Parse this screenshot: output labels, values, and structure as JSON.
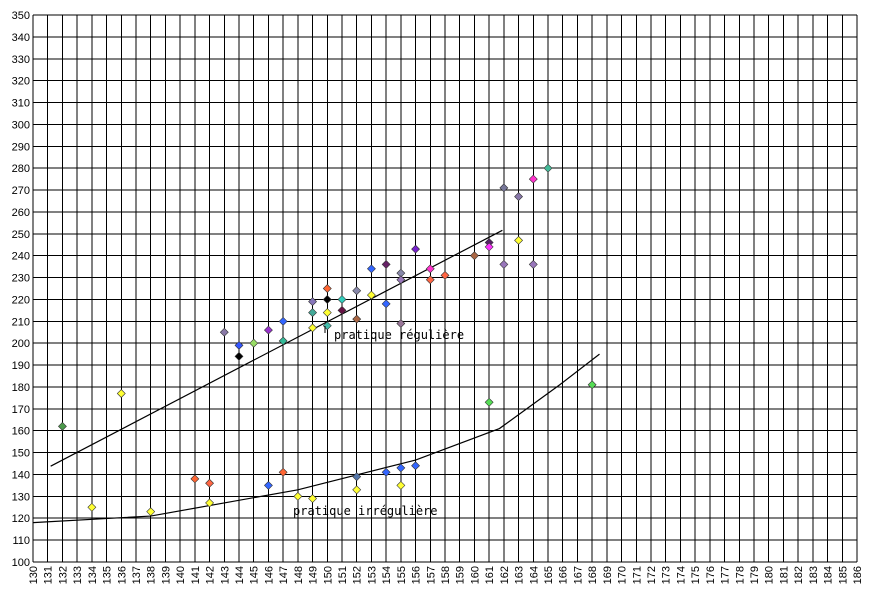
{
  "chart_data": {
    "type": "scatter",
    "xlim": [
      130,
      186
    ],
    "xticks": [
      130,
      131,
      132,
      133,
      134,
      135,
      136,
      137,
      138,
      139,
      140,
      141,
      142,
      143,
      144,
      145,
      146,
      147,
      148,
      149,
      150,
      151,
      152,
      153,
      154,
      155,
      156,
      157,
      158,
      159,
      160,
      161,
      162,
      163,
      164,
      165,
      166,
      167,
      168,
      169,
      170,
      171,
      172,
      173,
      174,
      175,
      176,
      177,
      178,
      179,
      180,
      181,
      182,
      183,
      184,
      185,
      186
    ],
    "ylim": [
      100,
      350
    ],
    "yticks": [
      100,
      110,
      120,
      130,
      140,
      150,
      160,
      170,
      180,
      190,
      200,
      210,
      220,
      230,
      240,
      250,
      260,
      270,
      280,
      290,
      300,
      310,
      320,
      330,
      340,
      350
    ],
    "grid": true,
    "series": [
      {
        "x": [
          132,
          134,
          136,
          138,
          141,
          142,
          142,
          143,
          144,
          144,
          145,
          146,
          146,
          147,
          147,
          147,
          148,
          149,
          149,
          149,
          149,
          150,
          150,
          150,
          150,
          151,
          151,
          152,
          152,
          152,
          152,
          153,
          153,
          154,
          154,
          154,
          155,
          155,
          155,
          155,
          155,
          156,
          156,
          157,
          157,
          158,
          160,
          161,
          161,
          161,
          162,
          162,
          163,
          163,
          164,
          164,
          165,
          168
        ],
        "values": [
          162,
          125,
          177,
          123,
          138,
          136,
          127,
          205,
          199,
          194,
          200,
          206,
          135,
          210,
          201,
          141,
          130,
          219,
          214,
          207,
          129,
          225,
          220,
          214,
          208,
          220,
          215,
          224,
          211,
          139,
          133,
          234,
          222,
          236,
          218,
          141,
          232,
          229,
          209,
          143,
          135,
          243,
          144,
          234,
          229,
          231,
          240,
          246,
          244,
          173,
          271,
          236,
          267,
          247,
          275,
          236,
          280,
          181
        ],
        "colors": [
          "#4c9a4c",
          "#ffff33",
          "#ffff33",
          "#ffff33",
          "#ff6633",
          "#ff6644",
          "#ffff33",
          "#8a7aa8",
          "#3355ff",
          "#000000",
          "#99dd66",
          "#9933cc",
          "#3366ff",
          "#3366ff",
          "#33bb99",
          "#ff6633",
          "#ffff33",
          "#8877bb",
          "#44aa99",
          "#ffff33",
          "#ffff33",
          "#ff6633",
          "#000000",
          "#ffff33",
          "#44bbaa",
          "#33ccbb",
          "#661144",
          "#8888aa",
          "#aa6644",
          "#5577aa",
          "#ffff33",
          "#3366ff",
          "#ffff33",
          "#662266",
          "#3366ff",
          "#3366ff",
          "#8888aa",
          "#9977bb",
          "#997799",
          "#3366ff",
          "#ffff33",
          "#7722cc",
          "#3366ff",
          "#ff33cc",
          "#ff6644",
          "#ff6644",
          "#aa6644",
          "#552266",
          "#ff33ff",
          "#55dd55",
          "#777799",
          "#9977bb",
          "#8877aa",
          "#ffff33",
          "#ff33cc",
          "#9977bb",
          "#44bb99",
          "#55dd55"
        ]
      }
    ],
    "trend_lines": [
      {
        "x": [
          131.2,
          161.9
        ],
        "values": [
          143.8,
          251.6
        ]
      },
      {
        "x": [
          130,
          138,
          148,
          156,
          161.7,
          165.8,
          168.5
        ],
        "values": [
          118,
          121,
          133,
          146.6,
          161,
          181,
          195
        ]
      }
    ],
    "annotations": [
      "pratique régulière",
      "pratique irrégulière"
    ]
  }
}
